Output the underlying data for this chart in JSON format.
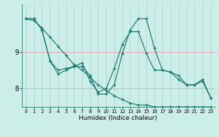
{
  "title": "",
  "xlabel": "Humidex (Indice chaleur)",
  "xlim": [
    -0.5,
    23.5
  ],
  "ylim": [
    7.5,
    10.3
  ],
  "yticks": [
    8,
    9
  ],
  "xticks": [
    0,
    1,
    2,
    3,
    4,
    5,
    6,
    7,
    8,
    9,
    10,
    11,
    12,
    13,
    14,
    15,
    16,
    17,
    18,
    19,
    20,
    21,
    22,
    23
  ],
  "bg_color": "#cceee8",
  "line_color": "#1a7a6e",
  "grid_color_v": "#aaccc8",
  "grid_color_h": "#e8aaaa",
  "line1_x": [
    0,
    1,
    2,
    3,
    4,
    5,
    6,
    7,
    8,
    9,
    10,
    11,
    12,
    13,
    14,
    15,
    16,
    17,
    18,
    19,
    20,
    21,
    22,
    23
  ],
  "line1_y": [
    9.9,
    9.9,
    9.6,
    8.75,
    8.4,
    8.5,
    8.6,
    8.6,
    8.35,
    7.85,
    7.85,
    8.1,
    8.95,
    9.6,
    9.9,
    9.9,
    9.1,
    8.5,
    8.45,
    8.25,
    8.1,
    8.1,
    8.25,
    7.75
  ],
  "line2_x": [
    0,
    1,
    2,
    3,
    4,
    5,
    6,
    7,
    8,
    9,
    10,
    11,
    12,
    13,
    14,
    15,
    16,
    17,
    18,
    19,
    20,
    21,
    22,
    23
  ],
  "line2_y": [
    9.9,
    9.85,
    9.65,
    9.4,
    9.15,
    8.9,
    8.65,
    8.5,
    8.3,
    8.1,
    7.95,
    7.8,
    7.7,
    7.6,
    7.55,
    7.55,
    7.5,
    7.5,
    7.5,
    7.5,
    7.5,
    7.5,
    7.5,
    7.5
  ],
  "line3_x": [
    0,
    1,
    2,
    3,
    4,
    5,
    6,
    7,
    8,
    9,
    10,
    11,
    12,
    13,
    14,
    15,
    16,
    17,
    18,
    19,
    20,
    21,
    22,
    23
  ],
  "line3_y": [
    9.9,
    9.9,
    9.6,
    8.75,
    8.5,
    8.55,
    8.6,
    8.7,
    8.2,
    7.9,
    8.0,
    8.55,
    9.2,
    9.55,
    9.55,
    8.95,
    8.5,
    8.5,
    8.45,
    8.35,
    8.1,
    8.1,
    8.2,
    7.75
  ]
}
